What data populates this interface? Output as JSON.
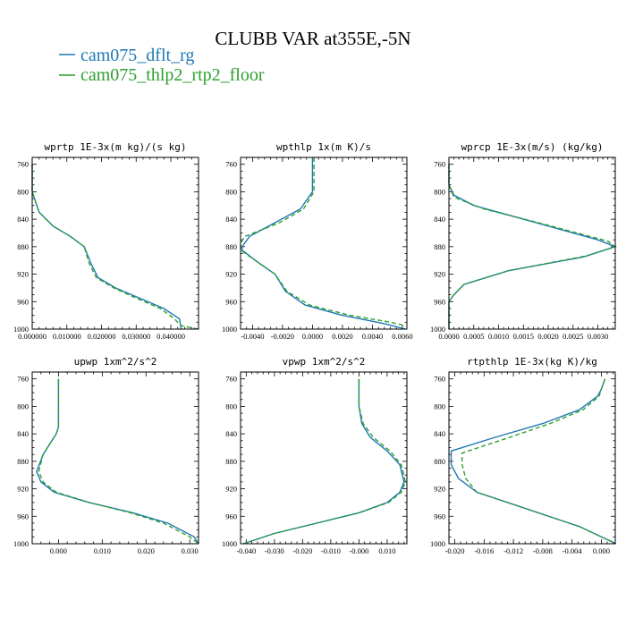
{
  "figure": {
    "title": "CLUBB VAR at355E,-5N",
    "legend": [
      {
        "name": "cam075_dflt_rg",
        "color": "#1f77b4",
        "dash": "solid"
      },
      {
        "name": "cam075_thlp2_rtp2_floor",
        "color": "#2ca02c",
        "dash": "dashed"
      }
    ]
  },
  "chart_data": [
    {
      "type": "line",
      "title": "wprtp  1E-3x(m kg)/(s kg)",
      "xlim": [
        0,
        0.048
      ],
      "xticks": [
        0,
        0.01,
        0.02,
        0.03,
        0.04
      ],
      "xtick_labels": [
        "0.000000",
        "0.010000",
        "0.020000",
        "0.030000",
        "0.040000"
      ],
      "ylim": [
        1000,
        750
      ],
      "yticks": [
        760,
        800,
        840,
        880,
        920,
        960,
        1000
      ],
      "series": [
        {
          "name": "cam075_dflt_rg",
          "x": [
            0,
            0,
            0.002,
            0.006,
            0.011,
            0.015,
            0.017,
            0.019,
            0.024,
            0.031,
            0.038,
            0.0425,
            0.043,
            0.043
          ],
          "y": [
            760,
            800,
            830,
            850,
            865,
            880,
            905,
            925,
            940,
            955,
            970,
            985,
            1000,
            1000
          ]
        },
        {
          "name": "cam075_thlp2_rtp2_floor",
          "x": [
            0,
            0,
            0.002,
            0.006,
            0.011,
            0.015,
            0.0165,
            0.0185,
            0.0235,
            0.03,
            0.037,
            0.041,
            0.043,
            0.048
          ],
          "y": [
            760,
            800,
            830,
            850,
            865,
            880,
            905,
            925,
            940,
            955,
            970,
            985,
            995,
            1000
          ]
        }
      ]
    },
    {
      "type": "line",
      "title": "wpthlp  1x(m K)/s",
      "xlim": [
        -0.0048,
        0.0063
      ],
      "xticks": [
        -0.004,
        -0.002,
        0,
        0.002,
        0.004,
        0.006
      ],
      "xtick_labels": [
        "-0.0040",
        "-0.0020",
        "0.0000",
        "0.0020",
        "0.0040",
        "0.0060"
      ],
      "ylim": [
        1000,
        750
      ],
      "yticks": [
        760,
        800,
        840,
        880,
        920,
        960,
        1000
      ],
      "series": [
        {
          "name": "cam075_dflt_rg",
          "x": [
            0,
            0,
            0,
            -0.0008,
            -0.0025,
            -0.0042,
            -0.0047,
            -0.0047,
            -0.0035,
            -0.0025,
            -0.0018,
            -0.0005,
            0.002,
            0.0048,
            0.0062
          ],
          "y": [
            750,
            760,
            800,
            825,
            845,
            865,
            880,
            885,
            905,
            920,
            945,
            965,
            980,
            992,
            1000
          ]
        },
        {
          "name": "cam075_thlp2_rtp2_floor",
          "x": [
            0.0001,
            0.0001,
            0.0001,
            -0.0006,
            -0.0022,
            -0.0045,
            -0.0048,
            -0.0048,
            -0.0035,
            -0.0025,
            -0.0017,
            -0.0002,
            0.0025,
            0.0052,
            0.0062
          ],
          "y": [
            750,
            760,
            800,
            825,
            845,
            865,
            875,
            885,
            905,
            920,
            945,
            965,
            980,
            990,
            995
          ]
        }
      ]
    },
    {
      "type": "line",
      "title": "wprcp  1E-3x(m/s) (kg/kg)",
      "xlim": [
        0,
        0.00335
      ],
      "xticks": [
        0,
        0.0005,
        0.001,
        0.0015,
        0.002,
        0.0025,
        0.003
      ],
      "xtick_labels": [
        "0.0000",
        "0.0005",
        "0.0010",
        "0.0015",
        "0.0020",
        "0.0025",
        "0.0030"
      ],
      "ylim": [
        1000,
        750
      ],
      "yticks": [
        760,
        800,
        840,
        880,
        920,
        960,
        1000
      ],
      "series": [
        {
          "name": "cam075_dflt_rg",
          "x": [
            0,
            0,
            0.0001,
            0.0005,
            0.0015,
            0.003,
            0.00335,
            0.0027,
            0.0012,
            0.0003,
            0.0001,
            0,
            0
          ],
          "y": [
            760,
            790,
            805,
            820,
            840,
            870,
            880,
            895,
            915,
            935,
            950,
            960,
            1000
          ]
        },
        {
          "name": "cam075_thlp2_rtp2_floor",
          "x": [
            0,
            0,
            0.0001,
            0.0007,
            0.0018,
            0.0032,
            0.00335,
            0.0028,
            0.0012,
            0.0003,
            0.0001,
            0,
            0
          ],
          "y": [
            760,
            790,
            808,
            825,
            845,
            872,
            880,
            893,
            915,
            935,
            950,
            960,
            1000
          ]
        }
      ]
    },
    {
      "type": "line",
      "title": "upwp  1xm^2/s^2",
      "xlim": [
        -0.006,
        0.032
      ],
      "xticks": [
        0,
        0.01,
        0.02,
        0.03
      ],
      "xtick_labels": [
        "0.000",
        "0.010",
        "0.020",
        "0.030"
      ],
      "ylim": [
        1000,
        750
      ],
      "yticks": [
        760,
        800,
        840,
        880,
        920,
        960,
        1000
      ],
      "series": [
        {
          "name": "cam075_dflt_rg",
          "x": [
            0,
            0,
            0,
            -0.0005,
            -0.0035,
            -0.005,
            -0.004,
            -0.001,
            0.007,
            0.017,
            0.025,
            0.031,
            0.032
          ],
          "y": [
            760,
            800,
            830,
            840,
            870,
            895,
            910,
            925,
            940,
            955,
            970,
            990,
            1000
          ]
        },
        {
          "name": "cam075_thlp2_rtp2_floor",
          "x": [
            0,
            0,
            0,
            -0.0005,
            -0.0035,
            -0.0045,
            -0.0035,
            -0.0005,
            0.007,
            0.0165,
            0.024,
            0.03,
            0.032
          ],
          "y": [
            760,
            800,
            830,
            840,
            870,
            895,
            910,
            925,
            940,
            955,
            970,
            990,
            1000
          ]
        }
      ]
    },
    {
      "type": "line",
      "title": "vpwp  1xm^2/s^2",
      "xlim": [
        -0.042,
        0.017
      ],
      "xticks": [
        -0.04,
        -0.03,
        -0.02,
        -0.01,
        0,
        0.01
      ],
      "xtick_labels": [
        "-0.040",
        "-0.030",
        "-0.020",
        "-0.010",
        "-0.000",
        "0.010"
      ],
      "ylim": [
        1000,
        750
      ],
      "yticks": [
        760,
        800,
        840,
        880,
        920,
        960,
        1000
      ],
      "series": [
        {
          "name": "cam075_dflt_rg",
          "x": [
            0,
            0,
            0.001,
            0.004,
            0.01,
            0.0145,
            0.016,
            0.0145,
            0.01,
            0,
            -0.015,
            -0.03,
            -0.041
          ],
          "y": [
            760,
            800,
            825,
            845,
            865,
            885,
            910,
            925,
            940,
            955,
            970,
            985,
            1000
          ]
        },
        {
          "name": "cam075_thlp2_rtp2_floor",
          "x": [
            0,
            0,
            0.0015,
            0.005,
            0.011,
            0.015,
            0.0165,
            0.015,
            0.0105,
            0,
            -0.015,
            -0.03,
            -0.041
          ],
          "y": [
            760,
            800,
            825,
            845,
            865,
            885,
            910,
            925,
            940,
            955,
            970,
            985,
            1000
          ]
        }
      ]
    },
    {
      "type": "line",
      "title": "rtpthlp  1E-3x(kg K)/kg",
      "xlim": [
        -0.0208,
        0.0019
      ],
      "xticks": [
        -0.02,
        -0.016,
        -0.012,
        -0.008,
        -0.004,
        0
      ],
      "xtick_labels": [
        "-0.020",
        "-0.016",
        "-0.012",
        "-0.008",
        "-0.004",
        "0.000"
      ],
      "ylim": [
        1000,
        750
      ],
      "yticks": [
        760,
        800,
        840,
        880,
        920,
        960,
        1000
      ],
      "series": [
        {
          "name": "cam075_dflt_rg",
          "x": [
            0.0005,
            0,
            -0.0005,
            -0.003,
            -0.008,
            -0.0145,
            -0.0205,
            -0.0205,
            -0.0195,
            -0.017,
            -0.01,
            -0.003,
            0.002
          ],
          "y": [
            760,
            775,
            785,
            805,
            825,
            845,
            865,
            885,
            905,
            925,
            950,
            975,
            1000
          ]
        },
        {
          "name": "cam075_thlp2_rtp2_floor",
          "x": [
            0.0005,
            0,
            -0.0003,
            -0.0025,
            -0.007,
            -0.0125,
            -0.019,
            -0.019,
            -0.0185,
            -0.017,
            -0.01,
            -0.003,
            0.002
          ],
          "y": [
            760,
            775,
            785,
            805,
            825,
            845,
            868,
            885,
            905,
            925,
            950,
            975,
            1000
          ]
        }
      ]
    }
  ]
}
